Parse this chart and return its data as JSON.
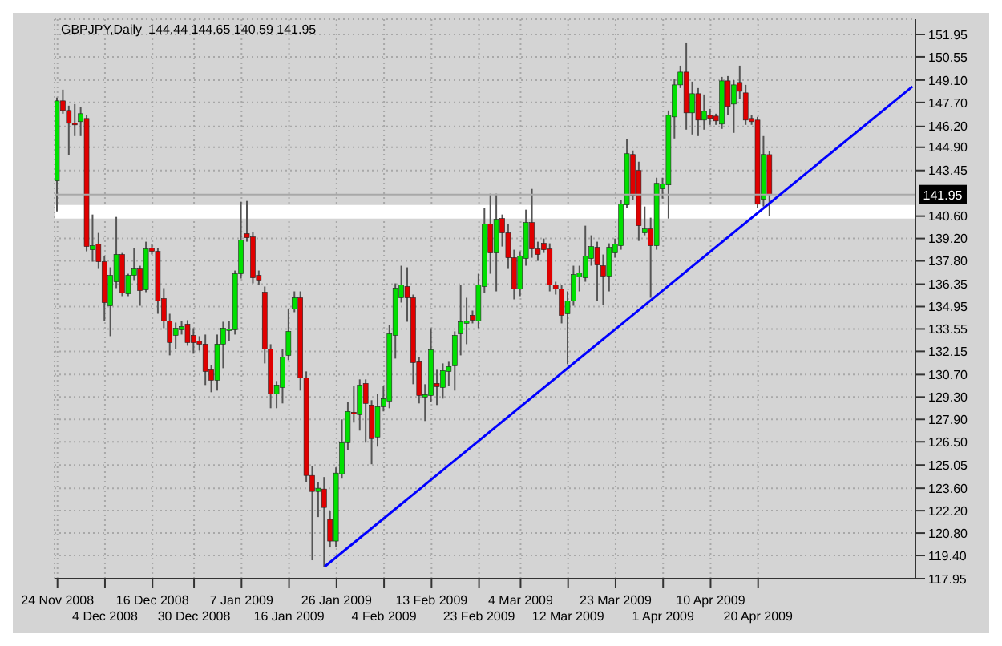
{
  "chart_data": {
    "type": "candlestick",
    "title": "GBPJPY,Daily",
    "subtitle": "144.44 144.65 140.59 141.95",
    "categories": [
      "24 Nov 2008",
      null,
      null,
      null,
      null,
      null,
      null,
      null,
      "4 Dec 2008",
      null,
      null,
      null,
      null,
      null,
      null,
      null,
      "16 Dec 2008",
      null,
      null,
      null,
      null,
      null,
      null,
      "30 Dec 2008",
      null,
      null,
      null,
      null,
      null,
      null,
      null,
      "7 Jan 2009",
      null,
      null,
      null,
      null,
      null,
      null,
      null,
      "16 Jan 2009",
      null,
      null,
      null,
      null,
      null,
      null,
      null,
      "26 Jan 2009",
      null,
      null,
      null,
      null,
      null,
      null,
      null,
      "4 Feb 2009",
      null,
      null,
      null,
      null,
      null,
      null,
      null,
      "13 Feb 2009",
      null,
      null,
      null,
      null,
      null,
      null,
      null,
      "23 Feb 2009",
      null,
      null,
      null,
      null,
      null,
      null,
      "4 Mar 2009",
      null,
      null,
      null,
      null,
      null,
      null,
      null,
      "12 Mar 2009",
      null,
      null,
      null,
      null,
      null,
      null,
      null,
      "23 Mar 2009",
      null,
      null,
      null,
      null,
      null,
      null,
      null,
      "1 Apr 2009",
      null,
      null,
      null,
      null,
      null,
      null,
      null,
      "10 Apr 2009",
      null,
      null,
      null,
      null,
      null,
      null,
      null,
      "20 Apr 2009",
      null,
      null,
      null,
      null,
      null,
      null,
      null,
      null,
      null,
      null,
      null,
      null,
      null,
      null,
      null,
      null,
      null,
      null,
      null,
      null,
      null,
      null,
      null,
      null,
      null,
      null
    ],
    "ohlc": [
      [
        142.8,
        148.0,
        140.9,
        147.8
      ],
      [
        147.8,
        148.5,
        147.0,
        147.2
      ],
      [
        147.2,
        147.5,
        144.4,
        146.4
      ],
      [
        146.4,
        147.6,
        145.6,
        146.3
      ],
      [
        146.5,
        147.4,
        145.6,
        147.0
      ],
      [
        146.7,
        146.9,
        138.4,
        138.7
      ],
      [
        138.5,
        140.7,
        137.75,
        138.75
      ],
      [
        138.85,
        139.55,
        137.3,
        137.75
      ],
      [
        137.75,
        138.1,
        134.05,
        135.2
      ],
      [
        135.0,
        137.4,
        133.1,
        136.9
      ],
      [
        136.5,
        140.55,
        136.1,
        138.2
      ],
      [
        138.2,
        138.3,
        135.6,
        135.8
      ],
      [
        135.75,
        137.0,
        135.6,
        136.9
      ],
      [
        136.9,
        138.6,
        136.6,
        137.3
      ],
      [
        137.3,
        137.5,
        135.0,
        135.95
      ],
      [
        136.0,
        139.0,
        135.85,
        138.55
      ],
      [
        138.6,
        138.85,
        138.2,
        138.4
      ],
      [
        138.4,
        138.6,
        134.5,
        135.3
      ],
      [
        135.45,
        136.1,
        133.6,
        134.05
      ],
      [
        134.05,
        134.5,
        131.9,
        132.7
      ],
      [
        133.15,
        133.95,
        132.3,
        133.6
      ],
      [
        133.5,
        134.05,
        133.2,
        133.7
      ],
      [
        133.85,
        134.1,
        132.5,
        132.7
      ],
      [
        133.15,
        133.6,
        132.0,
        132.7
      ],
      [
        132.8,
        133.1,
        132.2,
        132.6
      ],
      [
        132.6,
        133.2,
        130.05,
        130.9
      ],
      [
        131.0,
        131.3,
        129.6,
        130.35
      ],
      [
        130.35,
        133.2,
        129.7,
        132.6
      ],
      [
        132.6,
        134.0,
        131.1,
        133.6
      ],
      [
        133.5,
        134.05,
        132.8,
        133.55
      ],
      [
        133.5,
        137.2,
        133.2,
        137.0
      ],
      [
        137.0,
        141.5,
        136.7,
        139.1
      ],
      [
        139.5,
        141.55,
        139.0,
        139.25
      ],
      [
        139.3,
        139.6,
        136.4,
        136.75
      ],
      [
        136.9,
        137.2,
        136.3,
        136.6
      ],
      [
        135.85,
        136.2,
        131.4,
        132.3
      ],
      [
        132.3,
        132.6,
        128.6,
        129.5
      ],
      [
        129.5,
        130.3,
        128.6,
        130.05
      ],
      [
        129.9,
        132.3,
        128.9,
        131.8
      ],
      [
        131.9,
        134.8,
        131.6,
        133.4
      ],
      [
        134.8,
        135.9,
        134.6,
        135.5
      ],
      [
        135.5,
        135.9,
        129.7,
        130.5
      ],
      [
        130.5,
        130.9,
        124.0,
        124.4
      ],
      [
        124.4,
        125.0,
        119.1,
        123.4
      ],
      [
        123.4,
        124.0,
        121.8,
        123.6
      ],
      [
        123.55,
        124.3,
        118.65,
        122.4
      ],
      [
        121.65,
        122.2,
        119.9,
        120.3
      ],
      [
        120.3,
        124.9,
        119.9,
        124.55
      ],
      [
        124.5,
        127.9,
        124.2,
        126.45
      ],
      [
        126.45,
        129.0,
        126.0,
        128.4
      ],
      [
        128.35,
        130.0,
        127.7,
        128.25
      ],
      [
        128.2,
        130.4,
        127.2,
        130.05
      ],
      [
        130.15,
        130.4,
        126.45,
        128.9
      ],
      [
        128.8,
        129.1,
        125.1,
        126.7
      ],
      [
        126.8,
        129.5,
        126.2,
        128.7
      ],
      [
        128.7,
        130.0,
        128.4,
        129.2
      ],
      [
        129.05,
        133.8,
        128.6,
        133.25
      ],
      [
        133.15,
        136.4,
        131.7,
        136.1
      ],
      [
        135.5,
        137.5,
        135.2,
        136.3
      ],
      [
        136.2,
        137.4,
        134.0,
        135.5
      ],
      [
        135.5,
        135.7,
        130.1,
        131.45
      ],
      [
        131.5,
        131.8,
        128.9,
        129.4
      ],
      [
        129.3,
        130.1,
        127.8,
        129.45
      ],
      [
        129.4,
        133.6,
        129.0,
        132.25
      ],
      [
        130.15,
        131.0,
        128.8,
        129.95
      ],
      [
        129.9,
        131.4,
        129.2,
        130.95
      ],
      [
        130.9,
        131.5,
        130.0,
        131.2
      ],
      [
        131.25,
        133.4,
        129.7,
        133.15
      ],
      [
        133.25,
        136.3,
        131.9,
        134.0
      ],
      [
        133.9,
        135.5,
        132.6,
        134.05
      ],
      [
        134.4,
        134.7,
        133.9,
        134.1
      ],
      [
        134.05,
        137.0,
        133.6,
        136.3
      ],
      [
        136.2,
        141.1,
        135.8,
        140.1
      ],
      [
        140.1,
        142.0,
        137.0,
        138.3
      ],
      [
        138.3,
        142.0,
        135.9,
        140.4
      ],
      [
        140.45,
        140.7,
        138.7,
        139.55
      ],
      [
        139.55,
        140.1,
        137.3,
        138.0
      ],
      [
        138.0,
        138.5,
        135.4,
        136.05
      ],
      [
        136.05,
        138.4,
        135.6,
        138.1
      ],
      [
        137.95,
        141.0,
        137.5,
        140.2
      ],
      [
        140.2,
        142.3,
        138.0,
        138.55
      ],
      [
        138.55,
        139.0,
        137.8,
        138.2
      ],
      [
        138.9,
        139.2,
        138.3,
        138.5
      ],
      [
        138.55,
        138.9,
        135.9,
        136.3
      ],
      [
        136.3,
        136.5,
        135.7,
        136.05
      ],
      [
        136.05,
        136.3,
        133.9,
        134.4
      ],
      [
        134.5,
        135.9,
        131.35,
        135.3
      ],
      [
        135.3,
        137.5,
        135.0,
        136.95
      ],
      [
        136.8,
        137.5,
        135.9,
        137.05
      ],
      [
        136.75,
        140.0,
        136.5,
        138.1
      ],
      [
        137.95,
        139.4,
        137.5,
        138.7
      ],
      [
        138.65,
        139.0,
        135.3,
        137.55
      ],
      [
        137.5,
        138.2,
        135.05,
        136.85
      ],
      [
        136.85,
        138.9,
        135.9,
        138.65
      ],
      [
        138.3,
        139.2,
        138.0,
        138.85
      ],
      [
        138.75,
        141.6,
        138.5,
        141.35
      ],
      [
        141.3,
        145.4,
        141.1,
        144.5
      ],
      [
        144.45,
        144.7,
        141.6,
        141.9
      ],
      [
        143.45,
        144.0,
        139.05,
        140.0
      ],
      [
        139.55,
        141.2,
        139.4,
        139.8
      ],
      [
        139.8,
        140.5,
        135.5,
        138.75
      ],
      [
        138.75,
        143.0,
        138.5,
        142.65
      ],
      [
        142.3,
        143.0,
        141.7,
        142.6
      ],
      [
        142.55,
        147.2,
        140.45,
        146.9
      ],
      [
        146.8,
        149.15,
        145.45,
        148.8
      ],
      [
        148.8,
        150.0,
        148.6,
        149.6
      ],
      [
        149.6,
        151.4,
        146.0,
        147.05
      ],
      [
        147.05,
        149.0,
        145.7,
        148.25
      ],
      [
        148.25,
        148.6,
        145.6,
        146.6
      ],
      [
        146.6,
        148.2,
        146.0,
        147.15
      ],
      [
        146.9,
        147.3,
        146.3,
        146.7
      ],
      [
        146.85,
        147.0,
        146.3,
        146.55
      ],
      [
        146.35,
        149.3,
        146.05,
        149.05
      ],
      [
        149.05,
        149.35,
        146.9,
        147.45
      ],
      [
        147.6,
        149.1,
        145.8,
        148.8
      ],
      [
        148.95,
        150.0,
        147.9,
        148.4
      ],
      [
        148.3,
        148.8,
        146.3,
        146.6
      ],
      [
        146.7,
        146.9,
        146.3,
        146.5
      ],
      [
        146.6,
        146.8,
        141.1,
        141.35
      ],
      [
        141.65,
        145.6,
        141.2,
        144.45
      ],
      [
        144.44,
        144.65,
        140.59,
        141.95
      ],
      null,
      null,
      null,
      null,
      null,
      null,
      null,
      null,
      null,
      null,
      null,
      null,
      null,
      null,
      null,
      null,
      null,
      null,
      null,
      null,
      null,
      null,
      null,
      null
    ],
    "series": [
      {
        "type": "line",
        "values": [
          null,
          null,
          null,
          null,
          null,
          null,
          null,
          null,
          null,
          null,
          null,
          null,
          null,
          null,
          null,
          null,
          null,
          null,
          null,
          null,
          null,
          null,
          null,
          null,
          null,
          null,
          null,
          null,
          null,
          null,
          null,
          null,
          null,
          null,
          null,
          null,
          null,
          null,
          null,
          null,
          null,
          null,
          null,
          null,
          null,
          118.7,
          null,
          null,
          null,
          null,
          null,
          null,
          null,
          null,
          null,
          null,
          null,
          null,
          null,
          null,
          null,
          null,
          null,
          null,
          null,
          null,
          null,
          null,
          null,
          null,
          null,
          null,
          null,
          null,
          null,
          null,
          null,
          null,
          null,
          null,
          null,
          null,
          null,
          null,
          null,
          null,
          null,
          null,
          null,
          null,
          null,
          null,
          null,
          null,
          null,
          null,
          null,
          null,
          null,
          null,
          null,
          null,
          null,
          null,
          null,
          null,
          null,
          null,
          null,
          null,
          null,
          null,
          null,
          null,
          null,
          null,
          null,
          null,
          null,
          null,
          null,
          null,
          null,
          null,
          null,
          null,
          null,
          null,
          null,
          null,
          null,
          null,
          null,
          null,
          null,
          null,
          null,
          null,
          null,
          null,
          null,
          null,
          null,
          null,
          148.7
        ],
        "color": "#0000ff"
      }
    ],
    "ylim": [
      117.95,
      152.9
    ],
    "yticks": [
      117.95,
      {
        "value": 119.4,
        "label": "119.40"
      },
      {
        "value": 120.8,
        "label": "120.80"
      },
      {
        "value": 122.2,
        "label": "122.20"
      },
      {
        "value": 123.6,
        "label": "123.60"
      },
      125.05,
      {
        "value": 126.5,
        "label": "126.50"
      },
      {
        "value": 127.9,
        "label": "127.90"
      },
      {
        "value": 129.3,
        "label": "129.30"
      },
      {
        "value": 130.7,
        "label": "130.70"
      },
      132.15,
      133.55,
      134.95,
      136.35,
      {
        "value": 137.8,
        "label": "137.80"
      },
      {
        "value": 139.2,
        "label": "139.20"
      },
      {
        "value": 140.6,
        "label": "140.60"
      },
      143.45,
      {
        "value": 144.9,
        "label": "144.90"
      },
      {
        "value": 146.2,
        "label": "146.20"
      },
      {
        "value": 147.7,
        "label": "147.70"
      },
      {
        "value": 149.1,
        "label": "149.10"
      },
      150.55,
      151.95
    ],
    "grid": true,
    "ref_lines": [
      {
        "axis": "y",
        "value": 141.95,
        "label": "141.95",
        "color": "#a8a8a8"
      }
    ],
    "bands": [
      {
        "axis": "y",
        "from": 140.45,
        "to": 141.3,
        "color": "#ffffff"
      }
    ]
  }
}
